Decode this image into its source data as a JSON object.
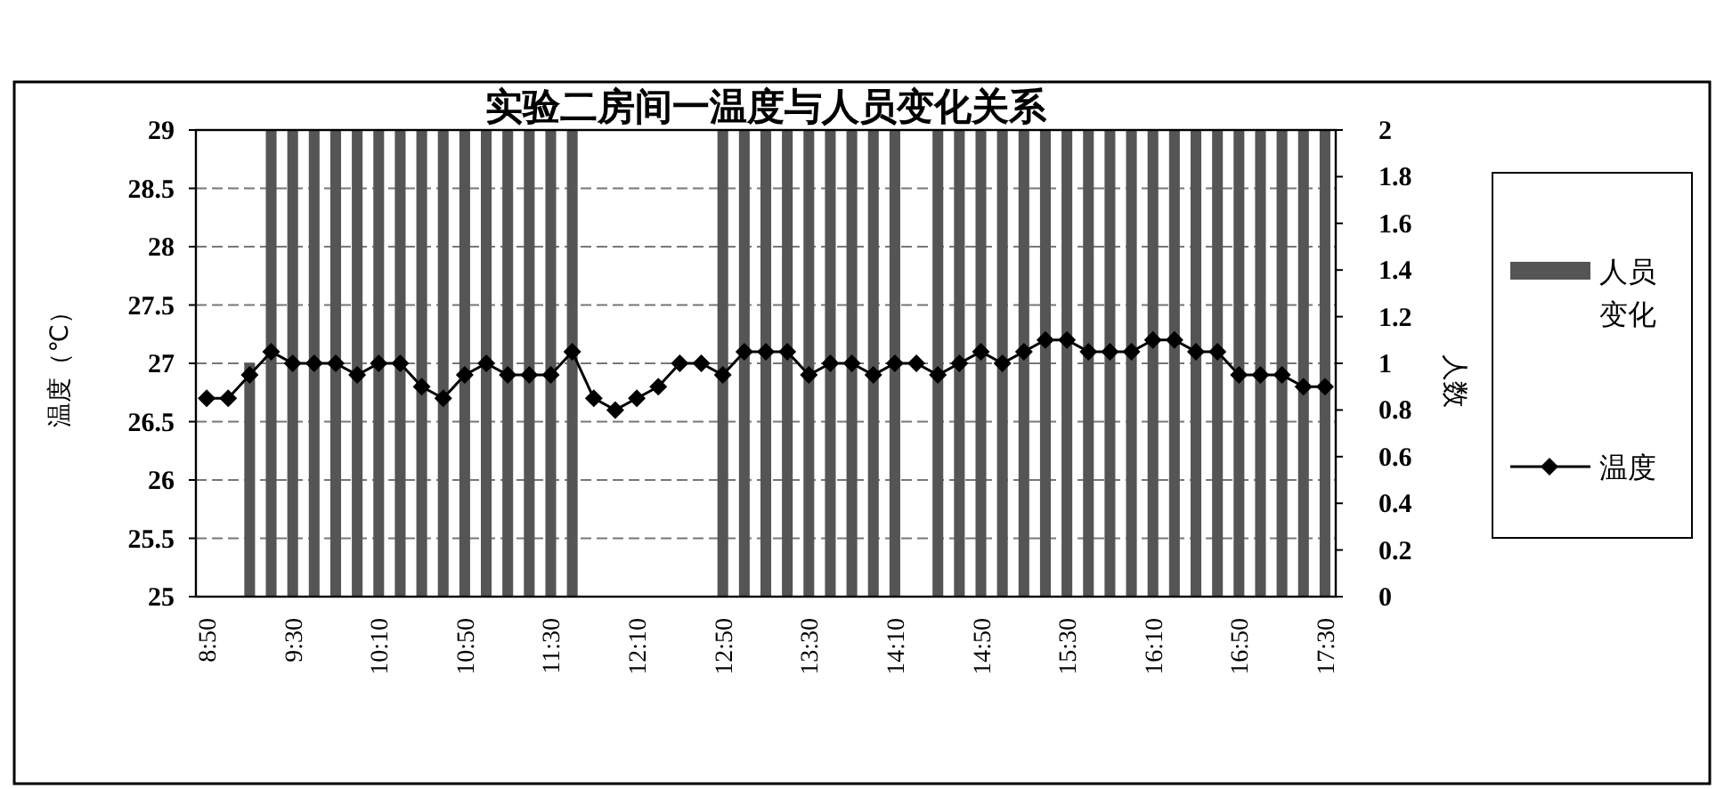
{
  "chart_data": {
    "type": "bar",
    "title": "实验二房间一温度与人员变化关系",
    "ylabel": "温度（℃）",
    "y2label": "人数",
    "categories": [
      "8:50",
      null,
      null,
      null,
      "9:30",
      null,
      null,
      null,
      "10:10",
      null,
      null,
      null,
      "10:50",
      null,
      null,
      null,
      "11:30",
      null,
      null,
      null,
      "12:10",
      null,
      null,
      null,
      "12:50",
      null,
      null,
      null,
      "13:30",
      null,
      null,
      null,
      "14:10",
      null,
      null,
      null,
      "14:50",
      null,
      null,
      null,
      "15:30",
      null,
      null,
      null,
      "16:10",
      null,
      null,
      null,
      "16:50",
      null,
      null,
      null,
      "17:30"
    ],
    "series": [
      {
        "name": "人员变化",
        "axis": "y2",
        "color": "#555555",
        "values": [
          0,
          0,
          1,
          2,
          2,
          2,
          2,
          2,
          2,
          2,
          2,
          2,
          2,
          2,
          2,
          2,
          2,
          2,
          0,
          0,
          0,
          0,
          0,
          0,
          2,
          2,
          2,
          2,
          2,
          2,
          2,
          2,
          2,
          0,
          2,
          2,
          2,
          2,
          2,
          2,
          2,
          2,
          2,
          2,
          2,
          2,
          2,
          2,
          2,
          2,
          2,
          2,
          2
        ]
      },
      {
        "name": "温度",
        "type": "line",
        "color": "#000000",
        "values": [
          26.7,
          26.7,
          26.9,
          27.1,
          27.0,
          27.0,
          27.0,
          26.9,
          27.0,
          27.0,
          26.8,
          26.7,
          26.9,
          27.0,
          26.9,
          26.9,
          26.9,
          27.1,
          26.7,
          26.6,
          26.7,
          26.8,
          27.0,
          27.0,
          26.9,
          27.1,
          27.1,
          27.1,
          26.9,
          27.0,
          27.0,
          26.9,
          27.0,
          27.0,
          26.9,
          27.0,
          27.1,
          27.0,
          27.1,
          27.2,
          27.2,
          27.1,
          27.1,
          27.1,
          27.2,
          27.2,
          27.1,
          27.1,
          26.9,
          26.9,
          26.9,
          26.8,
          26.8
        ]
      }
    ],
    "ylim": [
      25,
      29
    ],
    "yticks": [
      25,
      25.5,
      26,
      26.5,
      27,
      27.5,
      28,
      28.5,
      29
    ],
    "y2lim": [
      0,
      2
    ],
    "y2ticks": [
      0,
      0.2,
      0.4,
      0.6,
      0.8,
      1,
      1.2,
      1.4,
      1.6,
      1.8,
      2
    ],
    "grid": "y",
    "legend": "right",
    "marker": "diamond",
    "line_style": "solid"
  }
}
